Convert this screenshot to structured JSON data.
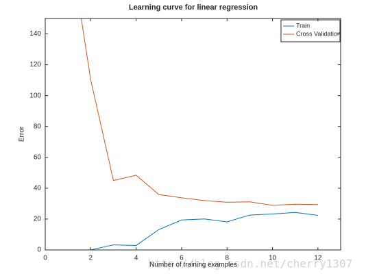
{
  "chart_data": {
    "type": "line",
    "title": "Learning curve for linear regression",
    "x_label": "Number of training examples",
    "y_label": "Error",
    "x": [
      1,
      2,
      3,
      4,
      5,
      6,
      7,
      8,
      9,
      10,
      11,
      12
    ],
    "series": [
      {
        "name": "Train",
        "color": "#0072bd",
        "values": [
          0,
          0,
          3.3,
          2.9,
          13.2,
          19.4,
          20.1,
          18.2,
          22.6,
          23.3,
          24.3,
          22.4
        ]
      },
      {
        "name": "Cross Validation",
        "color": "#d95319",
        "values": [
          205.8,
          110.3,
          45.0,
          48.4,
          35.9,
          33.8,
          32.0,
          30.9,
          31.2,
          28.9,
          29.6,
          29.4
        ]
      }
    ],
    "xlim": [
      0,
      13
    ],
    "ylim": [
      0,
      150
    ],
    "xticks": [
      0,
      2,
      4,
      6,
      8,
      10,
      12
    ],
    "yticks": [
      0,
      20,
      40,
      60,
      80,
      100,
      120,
      140
    ],
    "grid": false,
    "legend": "top-right",
    "watermark": "http://blog.csdn.net/cherry1307"
  }
}
